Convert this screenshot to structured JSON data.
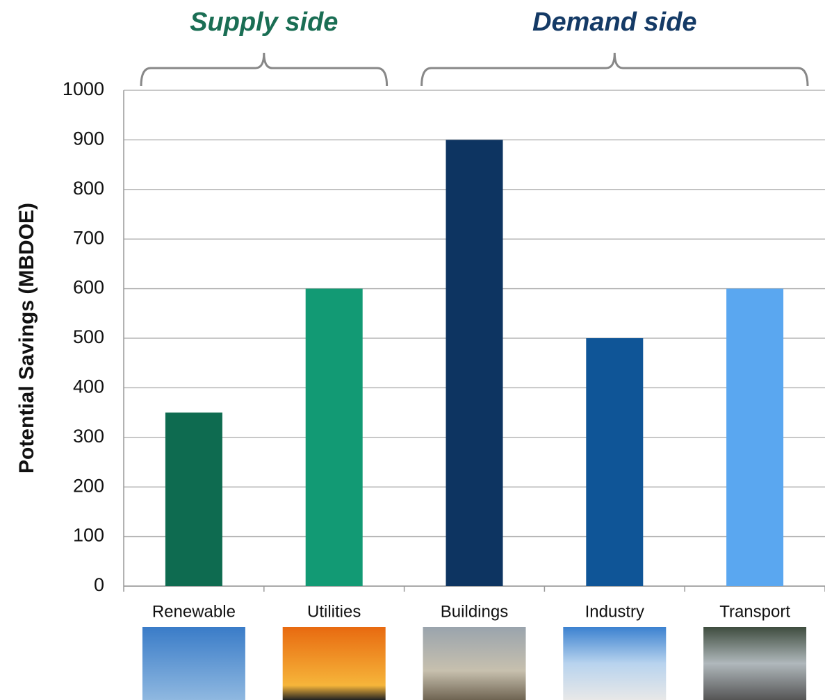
{
  "chart_data": {
    "type": "bar",
    "y_label": "Potential Savings (MBDOE)",
    "categories": [
      "Renewable",
      "Utilities",
      "Buildings",
      "Industry",
      "Transport"
    ],
    "values": [
      350,
      600,
      900,
      500,
      600
    ],
    "colors": [
      "#0e6b50",
      "#129a74",
      "#0d3461",
      "#0f5597",
      "#5aa7f0"
    ],
    "groups": [
      {
        "label": "Supply side",
        "color": "#1a6e54",
        "members": [
          "Renewable",
          "Utilities"
        ]
      },
      {
        "label": "Demand side",
        "color": "#143a66",
        "members": [
          "Buildings",
          "Industry",
          "Transport"
        ]
      }
    ],
    "ylim": [
      0,
      1000
    ],
    "yticks": [
      0,
      100,
      200,
      300,
      400,
      500,
      600,
      700,
      800,
      900,
      1000
    ],
    "grid": true
  }
}
